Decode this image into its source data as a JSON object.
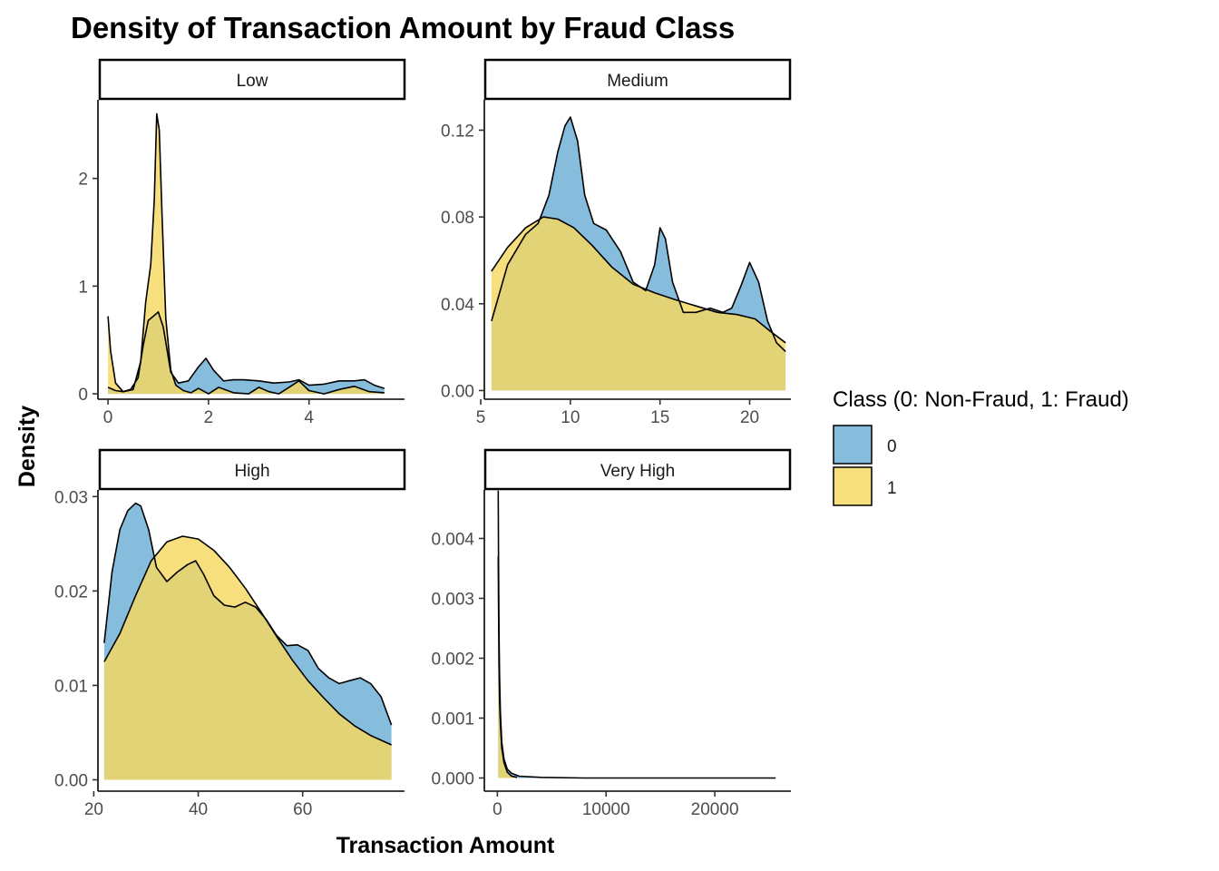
{
  "chart_data": {
    "type": "area",
    "title": "Density of Transaction Amount by Fraud Class",
    "xlabel": "Transaction Amount",
    "ylabel": "Density",
    "legend": {
      "title": "Class (0: Non-Fraud, 1: Fraud)",
      "placement": "right",
      "entries": [
        {
          "label": "0",
          "color": "#6baed6"
        },
        {
          "label": "1",
          "color": "#f6d860"
        }
      ]
    },
    "fill_alpha": 0.82,
    "facets": [
      {
        "label": "Low",
        "xlim": [
          -0.2,
          5.9
        ],
        "ylim": [
          -0.05,
          2.73
        ],
        "xticks": [
          0,
          2,
          4
        ],
        "yticks": [
          0,
          1,
          2
        ],
        "series": [
          {
            "name": "0",
            "x": [
              0,
              0.05,
              0.15,
              0.3,
              0.45,
              0.6,
              0.7,
              0.8,
              0.9,
              1.0,
              1.1,
              1.25,
              1.4,
              1.6,
              1.8,
              1.95,
              2.1,
              2.3,
              2.5,
              2.7,
              3.0,
              3.3,
              3.6,
              3.8,
              4.0,
              4.3,
              4.6,
              4.9,
              5.1,
              5.3,
              5.5
            ],
            "y": [
              0.06,
              0.05,
              0.03,
              0.02,
              0.04,
              0.15,
              0.45,
              0.68,
              0.72,
              0.76,
              0.62,
              0.2,
              0.1,
              0.12,
              0.25,
              0.33,
              0.22,
              0.12,
              0.13,
              0.13,
              0.12,
              0.1,
              0.11,
              0.13,
              0.08,
              0.09,
              0.12,
              0.12,
              0.13,
              0.08,
              0.05
            ]
          },
          {
            "name": "1",
            "x": [
              0,
              0.05,
              0.15,
              0.3,
              0.5,
              0.65,
              0.75,
              0.85,
              0.92,
              0.97,
              1.02,
              1.08,
              1.15,
              1.25,
              1.35,
              1.5,
              1.65,
              1.8,
              2.0,
              2.2,
              2.5,
              2.8,
              3.0,
              3.2,
              3.4,
              3.6,
              3.8,
              4.0,
              4.3,
              4.6,
              4.9,
              5.2,
              5.5
            ],
            "y": [
              0.72,
              0.4,
              0.1,
              0.02,
              0.04,
              0.3,
              0.85,
              1.2,
              1.8,
              2.6,
              2.45,
              1.6,
              0.7,
              0.22,
              0.08,
              0.03,
              0.01,
              0.05,
              0.0,
              0.06,
              0.01,
              0.0,
              0.06,
              0.02,
              0.0,
              0.06,
              0.12,
              0.03,
              0.0,
              0.04,
              0.07,
              0.02,
              0.01
            ]
          }
        ]
      },
      {
        "label": "Medium",
        "xlim": [
          5.2,
          22.3
        ],
        "ylim": [
          -0.004,
          0.134
        ],
        "xticks": [
          5,
          10,
          15,
          20
        ],
        "yticks": [
          0.0,
          0.04,
          0.08,
          0.12
        ],
        "ytick_labels": [
          "0.00",
          "0.04",
          "0.08",
          "0.12"
        ],
        "series": [
          {
            "name": "0",
            "x": [
              5.6,
              6.5,
              7.5,
              8.2,
              8.8,
              9.3,
              9.7,
              10.0,
              10.4,
              10.8,
              11.3,
              12.0,
              12.8,
              13.5,
              14.2,
              14.7,
              15.0,
              15.3,
              15.7,
              16.3,
              17.0,
              17.8,
              18.5,
              19.0,
              19.5,
              20.0,
              20.5,
              21.0,
              21.5,
              22.0
            ],
            "y": [
              0.032,
              0.058,
              0.072,
              0.077,
              0.09,
              0.11,
              0.122,
              0.126,
              0.115,
              0.09,
              0.077,
              0.074,
              0.064,
              0.05,
              0.046,
              0.058,
              0.075,
              0.07,
              0.05,
              0.036,
              0.036,
              0.038,
              0.036,
              0.038,
              0.048,
              0.059,
              0.05,
              0.032,
              0.022,
              0.018
            ]
          },
          {
            "name": "1",
            "x": [
              5.6,
              6.5,
              7.5,
              8.5,
              9.3,
              10.2,
              11.2,
              12.3,
              13.5,
              14.7,
              15.8,
              17.0,
              18.2,
              19.3,
              20.3,
              21.2,
              22.0
            ],
            "y": [
              0.055,
              0.066,
              0.075,
              0.08,
              0.079,
              0.075,
              0.067,
              0.057,
              0.049,
              0.045,
              0.042,
              0.039,
              0.036,
              0.035,
              0.033,
              0.027,
              0.022
            ]
          }
        ]
      },
      {
        "label": "High",
        "xlim": [
          20.8,
          79.5
        ],
        "ylim": [
          -0.0012,
          0.0307
        ],
        "xticks": [
          20,
          40,
          60
        ],
        "yticks": [
          0.0,
          0.01,
          0.02,
          0.03
        ],
        "ytick_labels": [
          "0.00",
          "0.01",
          "0.02",
          "0.03"
        ],
        "series": [
          {
            "name": "0",
            "x": [
              22,
              23.5,
              25,
              26.5,
              28,
              29,
              30.5,
              32,
              34,
              36,
              38,
              39.5,
              41,
              43,
              45,
              47,
              49,
              51,
              53,
              55,
              57,
              59,
              61,
              63,
              65,
              67,
              69,
              71,
              73,
              75,
              77
            ],
            "y": [
              0.0145,
              0.022,
              0.0265,
              0.0285,
              0.0293,
              0.029,
              0.0265,
              0.0225,
              0.021,
              0.022,
              0.0228,
              0.0232,
              0.0218,
              0.0195,
              0.0185,
              0.0183,
              0.0188,
              0.0183,
              0.017,
              0.0153,
              0.0142,
              0.0143,
              0.0137,
              0.0118,
              0.0108,
              0.0102,
              0.0105,
              0.0108,
              0.0102,
              0.0088,
              0.0058
            ]
          },
          {
            "name": "1",
            "x": [
              22,
              25,
              28,
              31,
              34,
              37,
              40,
              43,
              46,
              49,
              52,
              55,
              58,
              61,
              64,
              67,
              70,
              73,
              77
            ],
            "y": [
              0.0125,
              0.0155,
              0.0195,
              0.0232,
              0.0252,
              0.0258,
              0.0255,
              0.0243,
              0.0225,
              0.0203,
              0.0178,
              0.0152,
              0.0127,
              0.0105,
              0.0087,
              0.007,
              0.0057,
              0.0047,
              0.0037
            ]
          }
        ]
      },
      {
        "label": "Very High",
        "xlim": [
          -1200,
          27000
        ],
        "ylim": [
          -0.00022,
          0.00481
        ],
        "xticks": [
          0,
          10000,
          20000
        ],
        "yticks": [
          0.0,
          0.001,
          0.002,
          0.003,
          0.004
        ],
        "ytick_labels": [
          "0.000",
          "0.001",
          "0.002",
          "0.003",
          "0.004"
        ],
        "series": [
          {
            "name": "0",
            "x": [
              78,
              110,
              150,
              200,
              280,
              400,
              600,
              900,
              1300,
              2000,
              4000,
              8000,
              15000,
              25600
            ],
            "y": [
              0.0048,
              0.0035,
              0.0024,
              0.0017,
              0.0011,
              0.0006,
              0.00032,
              0.00015,
              8e-05,
              3e-05,
              1e-05,
              0.0,
              0.0,
              0.0
            ]
          },
          {
            "name": "1",
            "x": [
              78,
              110,
              150,
              200,
              280,
              400,
              600,
              900,
              1300,
              1800
            ],
            "y": [
              0.0037,
              0.0028,
              0.0019,
              0.0013,
              0.0009,
              0.0005,
              0.00026,
              0.0001,
              3e-05,
              1e-05
            ]
          }
        ]
      }
    ]
  }
}
